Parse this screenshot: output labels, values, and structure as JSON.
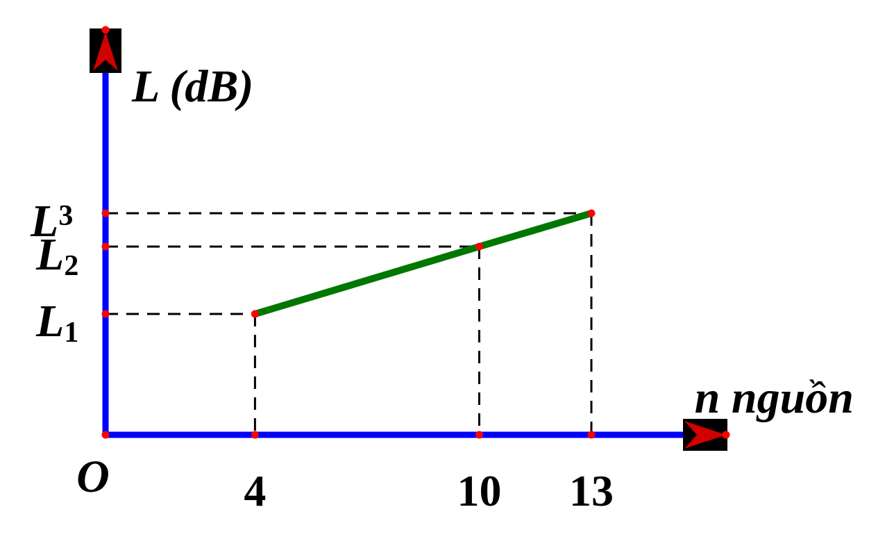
{
  "chart_data": {
    "type": "line",
    "x_axis_label": "n nguồn",
    "y_axis_label": "L (dB)",
    "origin_label": "O",
    "x_ticks": [
      "4",
      "10",
      "13"
    ],
    "y_ticks": [
      {
        "base": "L",
        "sub": "1"
      },
      {
        "base": "L",
        "sub": "2"
      },
      {
        "base": "L",
        "sub": "3"
      }
    ],
    "points": [
      {
        "x": 4,
        "y_label": "L1"
      },
      {
        "x": 10,
        "y_label": "L2"
      },
      {
        "x": 13,
        "y_label": "L3"
      }
    ],
    "colors": {
      "axis": "#0000ff",
      "line": "#007700",
      "dots": "#ff0000",
      "guides": "#000000"
    }
  }
}
